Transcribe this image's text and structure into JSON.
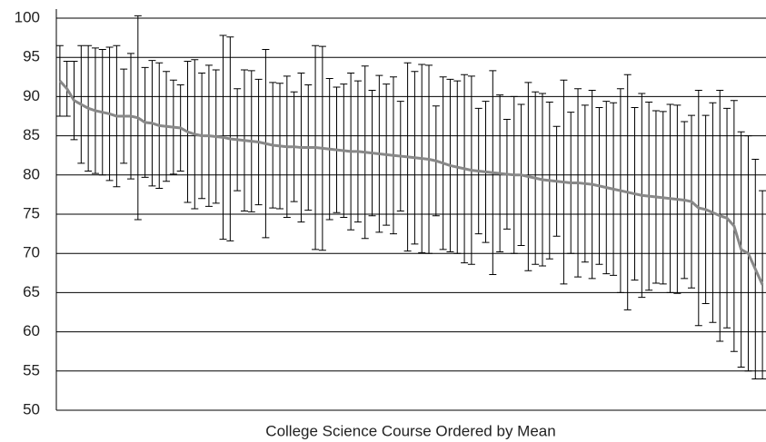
{
  "chart_data": {
    "type": "errorbar-line",
    "x_label": "College Science Course Ordered by Mean",
    "categories": [
      null,
      null,
      null,
      null,
      null,
      null,
      null,
      null,
      null,
      null,
      null,
      null,
      null,
      null,
      null,
      null,
      null,
      null,
      null,
      null,
      null,
      null,
      null,
      null,
      null,
      null,
      null,
      null,
      null,
      null,
      null,
      null,
      null,
      null,
      null,
      null,
      null,
      null,
      null,
      null,
      null,
      null,
      null,
      null,
      null,
      null,
      null,
      null,
      null,
      null,
      null,
      null,
      null,
      null,
      null,
      null,
      null,
      null,
      null,
      null,
      null,
      null,
      null,
      null,
      null,
      null,
      null,
      null,
      null,
      null,
      null,
      null,
      null,
      null,
      null,
      null,
      null,
      null,
      null,
      null,
      null,
      null,
      null,
      null,
      null,
      null,
      null,
      null,
      null,
      null,
      null,
      null,
      null,
      null,
      null,
      null,
      null,
      null,
      null,
      null
    ],
    "series": [
      {
        "color": "#888888",
        "error_color": "#000000",
        "values": [
          92,
          91,
          89.5,
          89,
          88.5,
          88.2,
          88,
          87.8,
          87.5,
          87.5,
          87.5,
          87.3,
          86.7,
          86.6,
          86.3,
          86.2,
          86.1,
          86,
          85.5,
          85.2,
          85,
          85,
          84.9,
          84.8,
          84.6,
          84.5,
          84.4,
          84.3,
          84.2,
          84,
          83.8,
          83.7,
          83.6,
          83.6,
          83.5,
          83.5,
          83.5,
          83.4,
          83.3,
          83.2,
          83.1,
          83,
          83,
          82.9,
          82.8,
          82.7,
          82.6,
          82.5,
          82.4,
          82.3,
          82.2,
          82.1,
          82,
          81.8,
          81.5,
          81.2,
          81,
          80.8,
          80.6,
          80.5,
          80.4,
          80.3,
          80.2,
          80.1,
          80,
          80,
          79.8,
          79.6,
          79.4,
          79.3,
          79.2,
          79.1,
          79,
          79,
          78.9,
          78.8,
          78.6,
          78.4,
          78.2,
          78,
          77.8,
          77.6,
          77.4,
          77.3,
          77.2,
          77.1,
          77,
          76.9,
          76.8,
          76.6,
          75.8,
          75.6,
          75.2,
          74.8,
          74.5,
          73.5,
          70.5,
          70,
          68,
          66
        ],
        "errors": [
          4.5,
          3.5,
          5,
          7.5,
          8,
          8,
          8,
          8.5,
          9,
          6,
          8,
          13,
          7,
          8,
          8,
          7,
          6,
          5.5,
          9,
          9.5,
          8,
          9,
          8.5,
          13,
          13,
          6.5,
          9,
          9,
          8,
          12,
          8,
          8,
          9,
          7,
          9.5,
          8,
          13,
          13,
          9,
          8,
          8.5,
          10,
          9,
          11,
          8,
          10,
          9,
          10,
          7,
          12,
          11,
          12,
          12,
          7,
          11,
          11,
          11,
          12,
          12,
          8,
          9,
          13,
          10,
          7,
          10,
          9,
          12,
          11,
          11,
          10,
          7,
          13,
          9,
          12,
          10,
          12,
          10,
          11,
          11,
          13,
          15,
          11,
          13,
          12,
          11,
          11,
          12,
          12,
          10,
          11,
          15,
          12,
          14,
          16,
          14,
          16,
          15,
          15,
          14,
          12
        ]
      }
    ],
    "ylim": [
      50,
      100
    ],
    "yticks": [
      50,
      55,
      60,
      65,
      70,
      75,
      80,
      85,
      90,
      95,
      100
    ],
    "grid": true
  }
}
